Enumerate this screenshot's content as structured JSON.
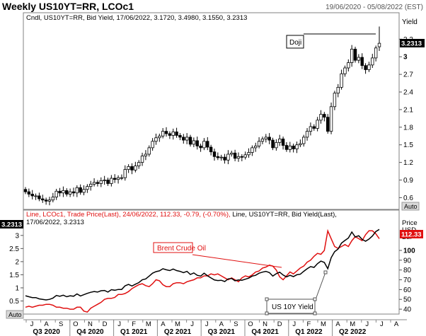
{
  "header": {
    "title": "Weekly US10YT=RR, LCOc1",
    "date_range": "19/06/2020 - 05/08/2022 (EST)"
  },
  "colors": {
    "candle_up": "#ffffff",
    "candle_down": "#000000",
    "yield_line": "#000000",
    "brent_line": "#e01010",
    "last_yield_bg": "#000000",
    "last_brent_bg": "#e01010",
    "axis_tag_bg": "#d9d9d9"
  },
  "chart_data": [
    {
      "type": "candlestick",
      "legend": "Cndl, US10YT=RR, Bid Yield, 17/06/2022, 3.1720, 3.4980, 3.1550, 3.2313",
      "ylabel": "Yield",
      "yticks": [
        "3.3",
        "3",
        "2.7",
        "2.4",
        "2.1",
        "1.8",
        "1.5",
        "1.2",
        "0.9",
        "0.6"
      ],
      "ylim": [
        0.4,
        3.75
      ],
      "last_value": "3.2313",
      "annotation": "Doji",
      "scale_button": "Auto",
      "close": [
        0.7,
        0.66,
        0.63,
        0.63,
        0.58,
        0.56,
        0.54,
        0.56,
        0.61,
        0.71,
        0.68,
        0.72,
        0.66,
        0.7,
        0.68,
        0.77,
        0.69,
        0.74,
        0.79,
        0.83,
        0.86,
        0.84,
        0.89,
        0.9,
        0.84,
        0.93,
        0.91,
        0.94,
        0.94,
        1.08,
        1.13,
        1.07,
        1.14,
        1.2,
        1.31,
        1.34,
        1.45,
        1.56,
        1.62,
        1.65,
        1.73,
        1.69,
        1.66,
        1.72,
        1.66,
        1.63,
        1.58,
        1.63,
        1.51,
        1.57,
        1.48,
        1.45,
        1.56,
        1.46,
        1.38,
        1.3,
        1.28,
        1.29,
        1.24,
        1.34,
        1.36,
        1.27,
        1.3,
        1.29,
        1.33,
        1.37,
        1.45,
        1.48,
        1.56,
        1.6,
        1.63,
        1.58,
        1.45,
        1.54,
        1.6,
        1.49,
        1.42,
        1.48,
        1.43,
        1.5,
        1.52,
        1.63,
        1.73,
        1.81,
        1.78,
        1.92,
        2.02,
        1.97,
        1.73,
        2.15,
        2.38,
        2.48,
        2.71,
        2.81,
        2.9,
        3.13,
        2.94,
        2.99,
        2.85,
        2.78,
        2.86,
        2.98,
        3.15,
        3.23
      ],
      "open": [
        0.74,
        0.7,
        0.66,
        0.63,
        0.63,
        0.58,
        0.56,
        0.54,
        0.56,
        0.61,
        0.71,
        0.68,
        0.72,
        0.66,
        0.7,
        0.68,
        0.77,
        0.69,
        0.74,
        0.79,
        0.83,
        0.86,
        0.84,
        0.89,
        0.9,
        0.84,
        0.93,
        0.91,
        0.94,
        0.94,
        1.08,
        1.13,
        1.07,
        1.14,
        1.2,
        1.31,
        1.34,
        1.45,
        1.56,
        1.62,
        1.65,
        1.73,
        1.69,
        1.66,
        1.72,
        1.66,
        1.63,
        1.58,
        1.63,
        1.51,
        1.57,
        1.48,
        1.45,
        1.56,
        1.46,
        1.38,
        1.3,
        1.28,
        1.29,
        1.24,
        1.34,
        1.36,
        1.27,
        1.3,
        1.29,
        1.33,
        1.37,
        1.45,
        1.48,
        1.56,
        1.6,
        1.63,
        1.58,
        1.45,
        1.54,
        1.6,
        1.49,
        1.42,
        1.48,
        1.43,
        1.5,
        1.52,
        1.63,
        1.73,
        1.81,
        1.78,
        1.92,
        2.02,
        1.97,
        1.73,
        2.15,
        2.38,
        2.48,
        2.71,
        2.81,
        2.9,
        3.13,
        2.94,
        2.99,
        2.85,
        2.78,
        2.86,
        2.98,
        3.17
      ]
    },
    {
      "type": "line",
      "legend": "Line, LCOc1, Trade Price(Last), 24/06/2022, 112.33, -0.79, (-0.70%), Line, US10YT=RR, Bid Yield(Last), 17/06/2022, 3.2313",
      "left_yticks": [
        "3",
        "2.5",
        "2",
        "1.5",
        "1",
        "0.5"
      ],
      "left_ylim": [
        0,
        3.4
      ],
      "right_yticks": [
        "100",
        "90",
        "80",
        "70",
        "60",
        "50",
        "40"
      ],
      "right_ylim": [
        35,
        126
      ],
      "right_axis_label": "Price USD Bbl",
      "last_yield": "3.2313",
      "last_price": "112.33",
      "scale_button": "Auto",
      "series": [
        {
          "name": "US 10Y Yield",
          "values": [
            0.7,
            0.66,
            0.63,
            0.63,
            0.58,
            0.56,
            0.54,
            0.56,
            0.61,
            0.71,
            0.68,
            0.72,
            0.66,
            0.7,
            0.68,
            0.77,
            0.69,
            0.74,
            0.79,
            0.83,
            0.86,
            0.84,
            0.89,
            0.9,
            0.84,
            0.93,
            0.91,
            0.94,
            0.94,
            1.08,
            1.13,
            1.07,
            1.14,
            1.2,
            1.31,
            1.34,
            1.45,
            1.56,
            1.62,
            1.65,
            1.73,
            1.69,
            1.66,
            1.72,
            1.66,
            1.63,
            1.58,
            1.63,
            1.51,
            1.57,
            1.48,
            1.45,
            1.56,
            1.46,
            1.38,
            1.3,
            1.28,
            1.29,
            1.24,
            1.34,
            1.36,
            1.27,
            1.3,
            1.29,
            1.33,
            1.37,
            1.45,
            1.48,
            1.56,
            1.6,
            1.63,
            1.58,
            1.45,
            1.54,
            1.6,
            1.49,
            1.42,
            1.48,
            1.43,
            1.5,
            1.52,
            1.63,
            1.73,
            1.81,
            1.78,
            1.92,
            2.02,
            1.97,
            1.73,
            2.15,
            2.38,
            2.48,
            2.71,
            2.81,
            2.9,
            3.13,
            2.94,
            2.99,
            2.85,
            2.78,
            2.86,
            2.98,
            3.15,
            3.23
          ]
        },
        {
          "name": "Brent Crude Oil",
          "values": [
            42,
            43,
            42,
            43,
            44,
            44,
            45,
            45,
            44,
            42,
            42,
            41,
            41,
            40,
            40,
            42,
            42,
            38,
            37,
            41,
            43,
            45,
            47,
            50,
            51,
            51,
            52,
            55,
            55,
            56,
            58,
            61,
            63,
            65,
            66,
            64,
            63,
            66,
            70,
            69,
            65,
            63,
            63,
            66,
            67,
            67,
            66,
            68,
            69,
            70,
            72,
            72,
            74,
            74,
            76,
            75,
            76,
            74,
            72,
            70,
            72,
            70,
            68,
            72,
            74,
            73,
            75,
            78,
            79,
            82,
            83,
            85,
            84,
            80,
            73,
            70,
            74,
            78,
            76,
            79,
            82,
            84,
            88,
            90,
            94,
            97,
            96,
            100,
            120,
            112,
            104,
            102,
            104,
            106,
            104,
            110,
            114,
            112,
            110,
            116,
            120,
            120,
            117,
            112
          ]
        }
      ],
      "annotations": [
        "Brent Crude Oil",
        "US 10Y Yield"
      ]
    }
  ],
  "x_axis": {
    "month_ticks": [
      "J",
      "A",
      "S",
      "O",
      "N",
      "D",
      "J",
      "F",
      "M",
      "A",
      "M",
      "J",
      "J",
      "A",
      "S",
      "O",
      "N",
      "D",
      "J",
      "F",
      "M",
      "A",
      "M",
      "J",
      "J",
      "A"
    ],
    "quarter_labels": [
      "Q3 2020",
      "Q4 2020",
      "Q1 2021",
      "Q2 2021",
      "Q3 2021",
      "Q4 2021",
      "Q1 2022",
      "Q2 2022"
    ]
  }
}
